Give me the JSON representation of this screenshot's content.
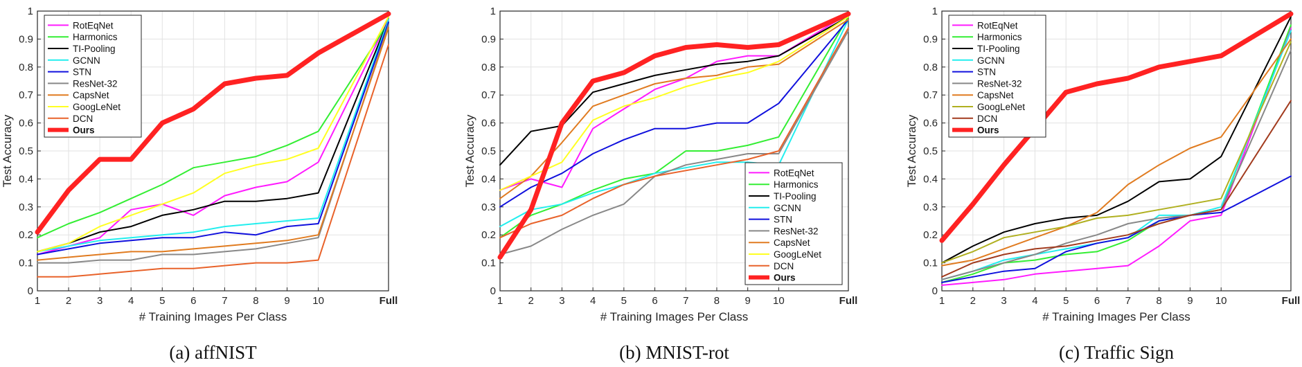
{
  "chart_data": [
    {
      "type": "line",
      "caption": "(a) affNIST",
      "xlabel": "# Training Images Per Class",
      "ylabel": "Test Accuracy",
      "x_tick_labels": [
        "1",
        "2",
        "3",
        "4",
        "5",
        "6",
        "7",
        "8",
        "9",
        "10",
        "Full"
      ],
      "y_tick_labels": [
        "0",
        "0.1",
        "0.2",
        "0.3",
        "0.4",
        "0.5",
        "0.6",
        "0.7",
        "0.8",
        "0.9",
        "1"
      ],
      "ylim": [
        0,
        1
      ],
      "grid": true,
      "legend_position": "top-left",
      "series": [
        {
          "name": "RotEqNet",
          "color": "#ff1aff",
          "values": [
            0.13,
            0.16,
            0.19,
            0.29,
            0.31,
            0.27,
            0.34,
            0.37,
            0.39,
            0.46,
            0.97
          ]
        },
        {
          "name": "Harmonics",
          "color": "#33ee33",
          "values": [
            0.19,
            0.24,
            0.28,
            0.33,
            0.38,
            0.44,
            0.46,
            0.48,
            0.52,
            0.57,
            0.96
          ]
        },
        {
          "name": "TI-Pooling",
          "color": "#000000",
          "values": [
            0.14,
            0.17,
            0.21,
            0.23,
            0.27,
            0.29,
            0.32,
            0.32,
            0.33,
            0.35,
            0.97
          ]
        },
        {
          "name": "GCNN",
          "color": "#22eeee",
          "values": [
            0.14,
            0.16,
            0.18,
            0.19,
            0.2,
            0.21,
            0.23,
            0.24,
            0.25,
            0.26,
            0.97
          ]
        },
        {
          "name": "STN",
          "color": "#1010dd",
          "values": [
            0.13,
            0.15,
            0.17,
            0.18,
            0.19,
            0.19,
            0.21,
            0.2,
            0.23,
            0.24,
            0.96
          ]
        },
        {
          "name": "ResNet-32",
          "color": "#888888",
          "values": [
            0.1,
            0.1,
            0.11,
            0.11,
            0.13,
            0.13,
            0.14,
            0.15,
            0.17,
            0.19,
            0.95
          ]
        },
        {
          "name": "CapsNet",
          "color": "#e07b20",
          "values": [
            0.11,
            0.12,
            0.13,
            0.14,
            0.14,
            0.15,
            0.16,
            0.17,
            0.18,
            0.2,
            0.94
          ]
        },
        {
          "name": "GoogLeNet",
          "color": "#ffff22",
          "values": [
            0.14,
            0.17,
            0.23,
            0.27,
            0.31,
            0.35,
            0.42,
            0.45,
            0.47,
            0.51,
            0.98
          ]
        },
        {
          "name": "DCN",
          "color": "#e8622a",
          "values": [
            0.05,
            0.05,
            0.06,
            0.07,
            0.08,
            0.08,
            0.09,
            0.1,
            0.1,
            0.11,
            0.88
          ]
        },
        {
          "name": "Ours",
          "color": "#ff2222",
          "bold": true,
          "values": [
            0.21,
            0.36,
            0.47,
            0.47,
            0.6,
            0.65,
            0.74,
            0.76,
            0.77,
            0.85,
            0.99
          ]
        }
      ]
    },
    {
      "type": "line",
      "caption": "(b) MNIST-rot",
      "xlabel": "# Training Images Per Class",
      "ylabel": "Test Accuracy",
      "x_tick_labels": [
        "1",
        "2",
        "3",
        "4",
        "5",
        "6",
        "7",
        "8",
        "9",
        "10",
        "Full"
      ],
      "y_tick_labels": [
        "0",
        "0.1",
        "0.2",
        "0.3",
        "0.4",
        "0.5",
        "0.6",
        "0.7",
        "0.8",
        "0.9",
        "1"
      ],
      "ylim": [
        0,
        1
      ],
      "grid": true,
      "legend_position": "bottom-right",
      "series": [
        {
          "name": "RotEqNet",
          "color": "#ff1aff",
          "values": [
            0.36,
            0.4,
            0.37,
            0.58,
            0.65,
            0.72,
            0.76,
            0.82,
            0.84,
            0.84,
            0.99
          ]
        },
        {
          "name": "Harmonics",
          "color": "#33ee33",
          "values": [
            0.19,
            0.27,
            0.31,
            0.36,
            0.4,
            0.42,
            0.5,
            0.5,
            0.52,
            0.55,
            0.98
          ]
        },
        {
          "name": "TI-Pooling",
          "color": "#000000",
          "values": [
            0.45,
            0.57,
            0.59,
            0.71,
            0.74,
            0.77,
            0.79,
            0.81,
            0.82,
            0.84,
            0.98
          ]
        },
        {
          "name": "GCNN",
          "color": "#22eeee",
          "values": [
            0.23,
            0.29,
            0.31,
            0.35,
            0.38,
            0.42,
            0.44,
            0.46,
            0.46,
            0.45,
            0.97
          ]
        },
        {
          "name": "STN",
          "color": "#1010dd",
          "values": [
            0.3,
            0.37,
            0.42,
            0.49,
            0.54,
            0.58,
            0.58,
            0.6,
            0.6,
            0.67,
            0.97
          ]
        },
        {
          "name": "ResNet-32",
          "color": "#888888",
          "values": [
            0.13,
            0.16,
            0.22,
            0.27,
            0.31,
            0.41,
            0.45,
            0.47,
            0.49,
            0.49,
            0.93
          ]
        },
        {
          "name": "CapsNet",
          "color": "#e07b20",
          "values": [
            0.33,
            0.41,
            0.53,
            0.66,
            0.7,
            0.74,
            0.76,
            0.77,
            0.8,
            0.81,
            0.97
          ]
        },
        {
          "name": "GoogLeNet",
          "color": "#ffff22",
          "values": [
            0.36,
            0.41,
            0.46,
            0.61,
            0.66,
            0.69,
            0.73,
            0.76,
            0.78,
            0.82,
            0.98
          ]
        },
        {
          "name": "DCN",
          "color": "#e8622a",
          "values": [
            0.19,
            0.24,
            0.27,
            0.33,
            0.38,
            0.41,
            0.43,
            0.45,
            0.47,
            0.5,
            0.94
          ]
        },
        {
          "name": "Ours",
          "color": "#ff2222",
          "bold": true,
          "values": [
            0.12,
            0.29,
            0.6,
            0.75,
            0.78,
            0.84,
            0.87,
            0.88,
            0.87,
            0.88,
            0.99
          ]
        }
      ]
    },
    {
      "type": "line",
      "caption": "(c) Traffic Sign",
      "xlabel": "# Training Images Per Class",
      "ylabel": "Test Accuracy",
      "x_tick_labels": [
        "1",
        "2",
        "3",
        "4",
        "5",
        "6",
        "7",
        "8",
        "9",
        "10",
        "Full"
      ],
      "y_tick_labels": [
        "0",
        "0.1",
        "0.2",
        "0.3",
        "0.4",
        "0.5",
        "0.6",
        "0.7",
        "0.8",
        "0.9",
        "1"
      ],
      "ylim": [
        0,
        1
      ],
      "grid": true,
      "legend_position": "top-left",
      "series": [
        {
          "name": "RotEqNet",
          "color": "#ff1aff",
          "values": [
            0.02,
            0.03,
            0.04,
            0.06,
            0.07,
            0.08,
            0.09,
            0.16,
            0.25,
            0.27,
            0.94
          ]
        },
        {
          "name": "Harmonics",
          "color": "#33ee33",
          "values": [
            0.03,
            0.06,
            0.1,
            0.11,
            0.13,
            0.14,
            0.18,
            0.25,
            0.27,
            0.29,
            0.95
          ]
        },
        {
          "name": "TI-Pooling",
          "color": "#000000",
          "values": [
            0.1,
            0.16,
            0.21,
            0.24,
            0.26,
            0.27,
            0.32,
            0.39,
            0.4,
            0.48,
            0.98
          ]
        },
        {
          "name": "GCNN",
          "color": "#22eeee",
          "values": [
            0.04,
            0.07,
            0.11,
            0.13,
            0.15,
            0.17,
            0.19,
            0.27,
            0.27,
            0.3,
            0.93
          ]
        },
        {
          "name": "STN",
          "color": "#1010dd",
          "values": [
            0.03,
            0.05,
            0.07,
            0.08,
            0.14,
            0.17,
            0.19,
            0.25,
            0.27,
            0.28,
            0.41
          ]
        },
        {
          "name": "ResNet-32",
          "color": "#888888",
          "values": [
            0.04,
            0.07,
            0.1,
            0.13,
            0.17,
            0.2,
            0.24,
            0.26,
            0.27,
            0.29,
            0.86
          ]
        },
        {
          "name": "CapsNet",
          "color": "#e07b20",
          "values": [
            0.09,
            0.11,
            0.15,
            0.19,
            0.23,
            0.28,
            0.38,
            0.45,
            0.51,
            0.55,
            0.9
          ]
        },
        {
          "name": "GoogLeNet",
          "color": "#b0b020",
          "values": [
            0.1,
            0.14,
            0.19,
            0.21,
            0.23,
            0.26,
            0.27,
            0.29,
            0.31,
            0.33,
            0.89
          ]
        },
        {
          "name": "DCN",
          "color": "#a23b1e",
          "values": [
            0.05,
            0.1,
            0.13,
            0.15,
            0.16,
            0.18,
            0.2,
            0.24,
            0.27,
            0.29,
            0.68
          ]
        },
        {
          "name": "Ours",
          "color": "#ff2222",
          "bold": true,
          "values": [
            0.18,
            0.31,
            0.45,
            0.58,
            0.71,
            0.74,
            0.76,
            0.8,
            0.82,
            0.84,
            0.99
          ]
        }
      ]
    }
  ]
}
